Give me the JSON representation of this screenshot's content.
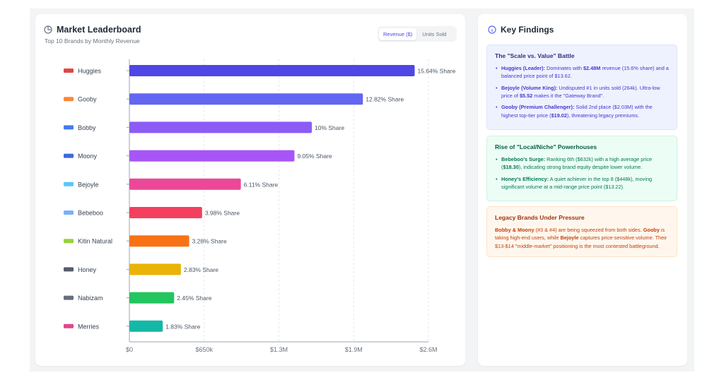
{
  "leaderboard": {
    "title": "Market Leaderboard",
    "subtitle": "Top 10 Brands by Monthly Revenue",
    "toggle": [
      {
        "label": "Revenue ($)",
        "active": true
      },
      {
        "label": "Units Sold",
        "active": false
      }
    ]
  },
  "chart_data": {
    "type": "bar",
    "orientation": "horizontal",
    "categories": [
      "Huggies",
      "Gooby",
      "Bobby",
      "Moony",
      "Bejoyle",
      "Bebeboo",
      "Kitin Natural",
      "Honey",
      "Nabizam",
      "Merries"
    ],
    "values": [
      2480000,
      2030000,
      1586000,
      1435000,
      969000,
      632000,
      520000,
      448000,
      389000,
      290000
    ],
    "data_labels": [
      "15.64% Share",
      "12.82% Share",
      "10% Share",
      "9.05% Share",
      "6.11% Share",
      "3.98% Share",
      "3.28% Share",
      "2.83% Share",
      "2.45% Share",
      "1.83% Share"
    ],
    "colors": [
      "#4f46e5",
      "#6366f1",
      "#8b5cf6",
      "#a855f7",
      "#ec4899",
      "#f43f5e",
      "#f97316",
      "#eab308",
      "#22c55e",
      "#14b8a6"
    ],
    "logo_colors": [
      "#dc2626",
      "#f97316",
      "#2563eb",
      "#1d4ed8",
      "#38bdf8",
      "#60a5fa",
      "#84cc16",
      "#374151",
      "#4b5563",
      "#db2777"
    ],
    "xlim": [
      0,
      2600000
    ],
    "xticks": [
      {
        "value": 0,
        "label": "$0"
      },
      {
        "value": 650000,
        "label": "$650k"
      },
      {
        "value": 1300000,
        "label": "$1.3M"
      },
      {
        "value": 1950000,
        "label": "$1.9M"
      },
      {
        "value": 2600000,
        "label": "$2.6M"
      }
    ],
    "grid": true
  },
  "findings": {
    "title": "Key Findings",
    "scale": {
      "title": "The \"Scale vs. Value\" Battle",
      "items": [
        {
          "bold": "Huggies (Leader):",
          "parts": [
            " Dominates with ",
            {
              "b": "$2.48M"
            },
            " revenue (15.6% share) and a balanced price point of $13.62."
          ]
        },
        {
          "bold": "Bejoyle (Volume King):",
          "parts": [
            " Undisputed #1 in units sold (264k). Ultra-low price of ",
            {
              "b": "$5.52"
            },
            " makes it the \"Gateway Brand\"."
          ]
        },
        {
          "bold": "Gooby (Premium Challenger):",
          "parts": [
            " Solid 2nd place ($2.03M) with the highest top-tier price (",
            {
              "b": "$19.02"
            },
            "), threatening legacy premiums."
          ]
        }
      ]
    },
    "niche": {
      "title": "Rise of \"Local/Niche\" Powerhouses",
      "items": [
        {
          "bold": "Bebeboo's Surge:",
          "parts": [
            " Ranking 6th ($632k) with a high average price (",
            {
              "b": "$18.30"
            },
            "), indicating strong brand equity despite lower volume."
          ]
        },
        {
          "bold": "Honey's Efficiency:",
          "parts": [
            " A quiet achiever in the top 8 ($448k), moving significant volume at a mid-range price point ($13.22)."
          ]
        }
      ]
    },
    "legacy": {
      "title": "Legacy Brands Under Pressure",
      "parts": [
        {
          "b": "Bobby & Moony"
        },
        " (#3 & #4) are being squeezed from both sides. ",
        {
          "b": "Gooby"
        },
        " is taking high-end users, while ",
        {
          "b": "Bejoyle"
        },
        " captures price-sensitive volume. Their $13-$14 \"middle-market\" positioning is the most contested battleground."
      ]
    }
  }
}
